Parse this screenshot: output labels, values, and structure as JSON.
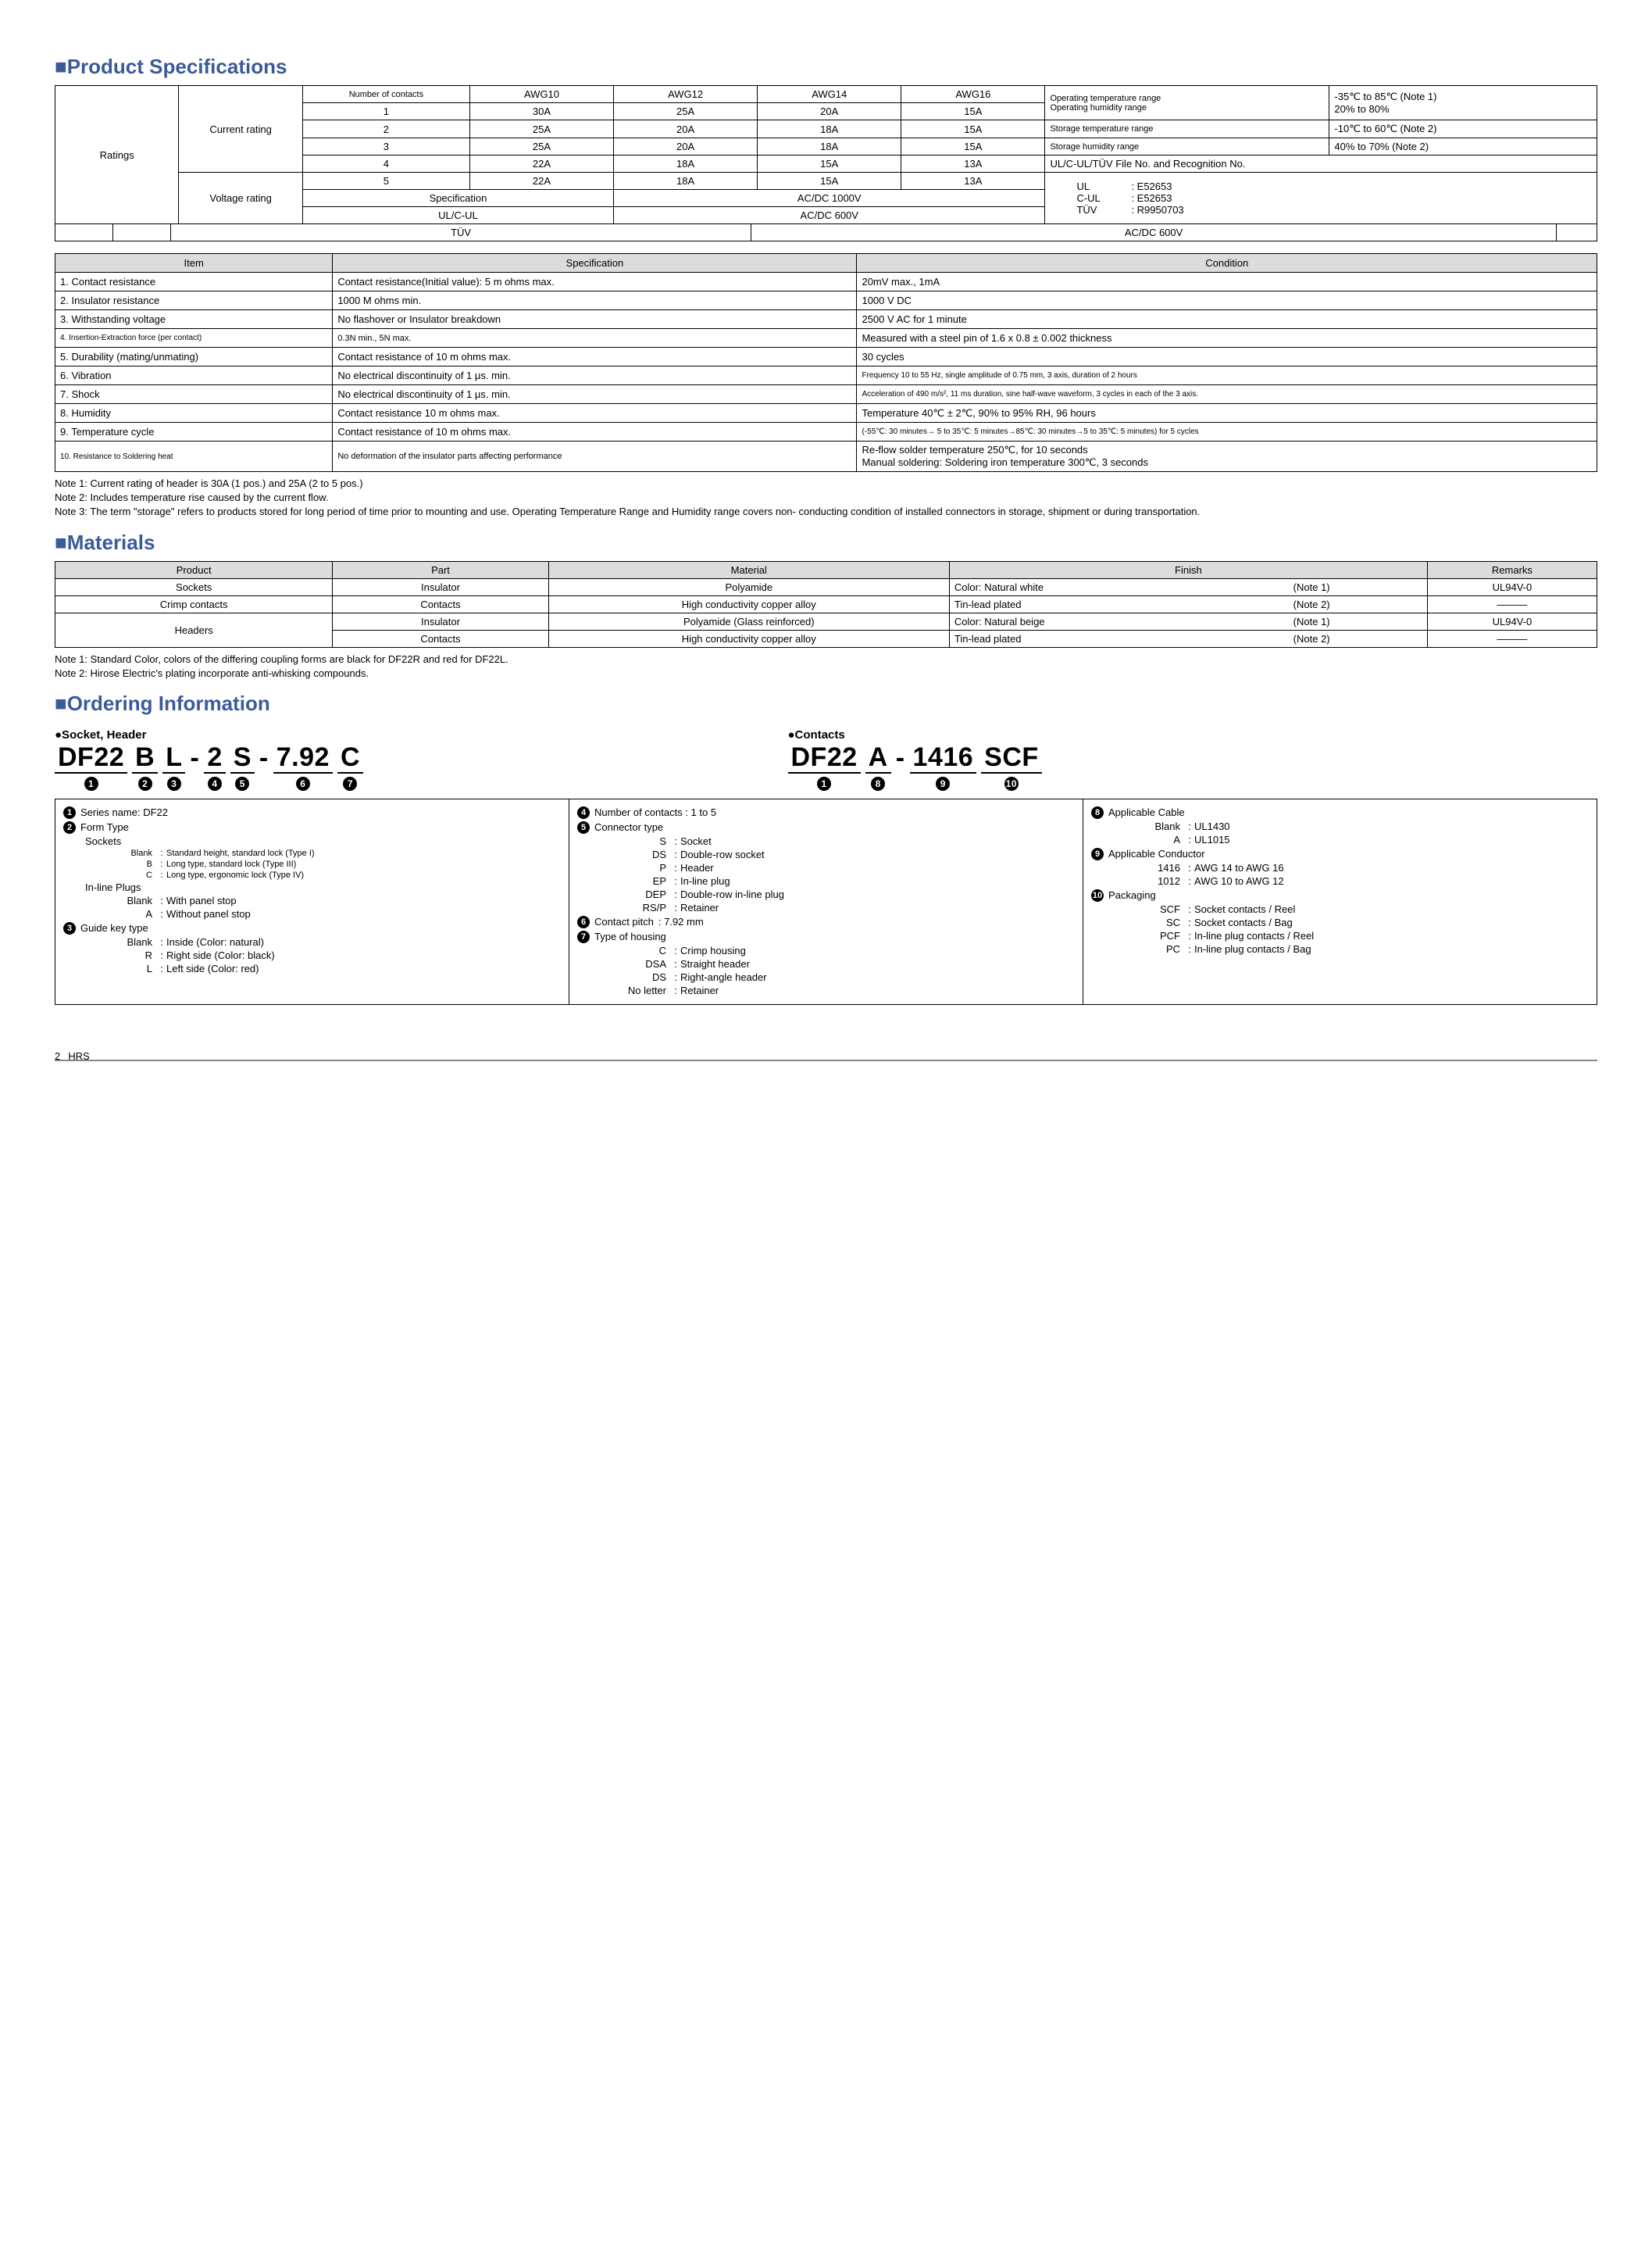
{
  "page_number": "2",
  "logo_text": "HRS",
  "sections": {
    "spec_title": "■Product Specifications",
    "materials_title": "■Materials",
    "ordering_title": "■Ordering Information"
  },
  "ratings": {
    "row_label": "Ratings",
    "current_label": "Current rating",
    "voltage_label": "Voltage rating",
    "headers": [
      "Number of contacts",
      "AWG10",
      "AWG12",
      "AWG14",
      "AWG16"
    ],
    "rows": [
      [
        "1",
        "30A",
        "25A",
        "20A",
        "15A"
      ],
      [
        "2",
        "25A",
        "20A",
        "18A",
        "15A"
      ],
      [
        "3",
        "25A",
        "20A",
        "18A",
        "15A"
      ],
      [
        "4",
        "22A",
        "18A",
        "15A",
        "13A"
      ],
      [
        "5",
        "22A",
        "18A",
        "15A",
        "13A"
      ]
    ],
    "voltage_rows": [
      [
        "Specification",
        "AC/DC    1000V"
      ],
      [
        "UL/C-UL",
        "AC/DC     600V"
      ],
      [
        "TÜV",
        "AC/DC     600V"
      ]
    ],
    "env_rows": [
      [
        "Operating temperature range",
        "-35℃ to 85℃ (Note 1)"
      ],
      [
        "Operating humidity range",
        "20% to 80%"
      ],
      [
        "Storage temperature range",
        "-10℃ to 60℃ (Note 2)"
      ],
      [
        "Storage humidity range",
        "40% to 70% (Note 2)"
      ]
    ],
    "ul_row": "UL/C-UL/TÜV    File No. and Recognition No.",
    "cert_rows": [
      [
        "UL",
        ": E52653"
      ],
      [
        "C-UL",
        ": E52653"
      ],
      [
        "TÜV",
        ": R9950703"
      ]
    ]
  },
  "spec_table": {
    "headers": [
      "Item",
      "Specification",
      "Condition"
    ],
    "rows": [
      [
        "1. Contact resistance",
        "Contact resistance(Initial value): 5 m ohms max.",
        "20mV max., 1mA"
      ],
      [
        "2. Insulator resistance",
        "1000 M ohms min.",
        "1000 V DC"
      ],
      [
        "3. Withstanding voltage",
        "No flashover or Insulator breakdown",
        "2500 V AC for 1 minute"
      ],
      [
        "4. Insertion-Extraction force (per contact)",
        "0.3N min., 5N max.",
        "Measured with a steel pin of 1.6 x 0.8 ± 0.002 thickness"
      ],
      [
        "5. Durability (mating/unmating)",
        "Contact resistance of 10 m ohms max.",
        "30 cycles"
      ],
      [
        "6. Vibration",
        "No electrical discontinuity of 1 μs. min.",
        "Frequency 10 to 55 Hz, single amplitude of 0.75 mm, 3 axis, duration of 2 hours"
      ],
      [
        "7. Shock",
        "No electrical discontinuity of 1 μs. min.",
        "Acceleration of 490 m/s², 11 ms duration, sine half-wave waveform, 3 cycles in each of the 3 axis."
      ],
      [
        "8. Humidity",
        "Contact resistance 10 m ohms max.",
        "Temperature 40℃ ± 2℃, 90% to 95% RH, 96 hours"
      ],
      [
        "9. Temperature cycle",
        "Contact resistance of 10 m ohms max.",
        "(-55℃: 30 minutes→ 5 to 35℃: 5 minutes→85℃: 30 minutes→5 to 35℃: 5 minutes) for 5 cycles"
      ],
      [
        "10. Resistance to Soldering heat",
        "No deformation of the insulator parts affecting performance",
        "Re-flow solder temperature 250℃, for 10 seconds\nManual soldering: Soldering iron temperature 300℃, 3 seconds"
      ]
    ],
    "item_font_small_rows": [
      3,
      9
    ],
    "cond_font_small_rows": [
      5,
      6,
      8
    ]
  },
  "spec_notes": [
    "Note 1: Current rating of header is 30A (1 pos.) and 25A (2 to 5 pos.)",
    "Note 2: Includes temperature rise caused by the current flow.",
    "Note 3: The term \"storage\" refers to products stored for long period of time prior to mounting and use. Operating Temperature Range and Humidity range covers non- conducting condition of installed connectors in storage, shipment or during transportation."
  ],
  "materials": {
    "headers": [
      "Product",
      "Part",
      "Material",
      "Finish",
      "Remarks"
    ],
    "rows": [
      [
        "Sockets",
        "Insulator",
        "Polyamide",
        "Color: Natural white",
        "(Note 1)",
        "UL94V-0"
      ],
      [
        "Crimp contacts",
        "Contacts",
        "High conductivity copper alloy",
        "Tin-lead plated",
        "(Note 2)",
        "———"
      ],
      [
        "Headers",
        "Insulator",
        "Polyamide (Glass reinforced)",
        "Color: Natural beige",
        "(Note 1)",
        "UL94V-0"
      ],
      [
        "",
        "Contacts",
        "High conductivity copper alloy",
        "Tin-lead plated",
        "(Note 2)",
        "———"
      ]
    ]
  },
  "mat_notes": [
    "Note 1: Standard Color, colors of the differing coupling forms are black for DF22R and red for DF22L.",
    "Note 2: Hirose Electric's plating incorporate anti-whisking compounds."
  ],
  "ordering": {
    "sub_socket": "●Socket, Header",
    "sub_contacts": "●Contacts",
    "pn_socket": [
      {
        "txt": "DF22",
        "nums": [
          "1"
        ]
      },
      {
        "txt": "B",
        "nums": [
          "2"
        ]
      },
      {
        "txt": "L",
        "nums": [
          "3"
        ]
      },
      {
        "dash": "-"
      },
      {
        "txt": "2",
        "nums": [
          "4"
        ]
      },
      {
        "txt": "S",
        "nums": [
          "5"
        ]
      },
      {
        "dash": "-"
      },
      {
        "txt": "7.92",
        "nums": [
          "6"
        ]
      },
      {
        "txt": "C",
        "nums": [
          "7"
        ]
      }
    ],
    "pn_contacts": [
      {
        "txt": "DF22",
        "nums": [
          "1"
        ]
      },
      {
        "txt": "A",
        "nums": [
          "8"
        ]
      },
      {
        "dash": "-"
      },
      {
        "txt": "1416",
        "nums": [
          "9"
        ]
      },
      {
        "txt": "SCF",
        "nums": [
          "10"
        ]
      }
    ],
    "col1": {
      "items": [
        {
          "n": "1",
          "label": "Series name: DF22"
        },
        {
          "n": "2",
          "label": "Form Type"
        },
        {
          "sub": "Sockets"
        },
        {
          "kv": [
            "Blank",
            "Standard height, standard lock (Type I)"
          ],
          "small": true
        },
        {
          "kv": [
            "B",
            "Long type, standard lock (Type III)"
          ],
          "small": true
        },
        {
          "kv": [
            "C",
            "Long type, ergonomic lock (Type IV)"
          ],
          "small": true
        },
        {
          "sub": "In-line Plugs"
        },
        {
          "kv": [
            "Blank",
            "With panel stop"
          ]
        },
        {
          "kv": [
            "A",
            "Without panel stop"
          ]
        },
        {
          "n": "3",
          "label": "Guide key type"
        },
        {
          "kv": [
            "Blank",
            "Inside (Color: natural)"
          ]
        },
        {
          "kv": [
            "R",
            "Right side (Color: black)"
          ]
        },
        {
          "kv": [
            "L",
            "Left side (Color: red)"
          ]
        }
      ]
    },
    "col2": {
      "items": [
        {
          "n": "4",
          "label": "Number of contacts : 1 to 5"
        },
        {
          "n": "5",
          "label": "Connector type"
        },
        {
          "kv": [
            "S",
            "Socket"
          ]
        },
        {
          "kv": [
            "DS",
            "Double-row socket"
          ]
        },
        {
          "kv": [
            "P",
            "Header"
          ]
        },
        {
          "kv": [
            "EP",
            "In-line plug"
          ]
        },
        {
          "kv": [
            "DEP",
            "Double-row in-line plug"
          ]
        },
        {
          "kv": [
            "RS/P",
            "Retainer"
          ]
        },
        {
          "n": "6",
          "label": "Contact pitch",
          "val": ": 7.92 mm"
        },
        {
          "n": "7",
          "label": "Type of housing"
        },
        {
          "kv": [
            "C",
            "Crimp housing"
          ]
        },
        {
          "kv": [
            "DSA",
            "Straight header"
          ]
        },
        {
          "kv": [
            "DS",
            "Right-angle header"
          ]
        },
        {
          "kv": [
            "No letter",
            "Retainer"
          ]
        }
      ]
    },
    "col3": {
      "items": [
        {
          "n": "8",
          "label": "Applicable Cable"
        },
        {
          "kv": [
            "Blank",
            "UL1430"
          ]
        },
        {
          "kv": [
            "A",
            "UL1015"
          ]
        },
        {
          "n": "9",
          "label": "Applicable Conductor"
        },
        {
          "kv": [
            "1416",
            "AWG 14 to AWG 16"
          ]
        },
        {
          "kv": [
            "1012",
            "AWG 10 to AWG 12"
          ]
        },
        {
          "n": "10",
          "label": "Packaging"
        },
        {
          "kv": [
            "SCF",
            "Socket contacts / Reel"
          ]
        },
        {
          "kv": [
            "SC",
            "Socket contacts / Bag"
          ]
        },
        {
          "kv": [
            "PCF",
            "In-line plug contacts / Reel"
          ]
        },
        {
          "kv": [
            "PC",
            "In-line plug contacts / Bag"
          ]
        }
      ]
    }
  }
}
